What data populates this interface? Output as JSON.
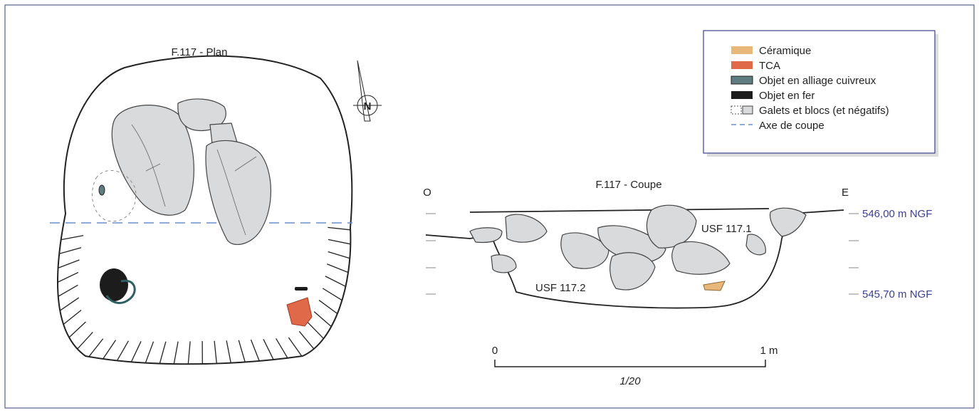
{
  "plan": {
    "title": "F.117 - Plan",
    "north": "N"
  },
  "section": {
    "title": "F.117 - Coupe",
    "west": "O",
    "east": "E",
    "elevations": [
      "546,00 m NGF",
      "545,70 m NGF"
    ],
    "units": [
      "USF 117.1",
      "USF 117.2"
    ]
  },
  "legend": [
    "Céramique",
    "TCA",
    "Objet en alliage cuivreux",
    "Objet en fer",
    "Galets et blocs (et négatifs)",
    "Axe de coupe"
  ],
  "scale": {
    "start": "0",
    "end": "1 m",
    "ratio": "1/20"
  }
}
